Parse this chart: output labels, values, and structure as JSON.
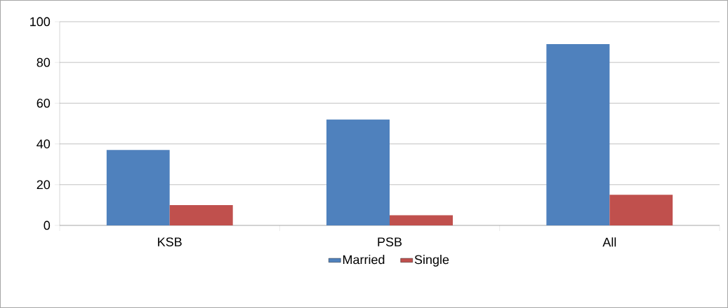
{
  "chart_data": {
    "type": "bar",
    "categories": [
      "KSB",
      "PSB",
      "All"
    ],
    "series": [
      {
        "name": "Married",
        "color": "#4f81bd",
        "values": [
          37,
          52,
          89
        ]
      },
      {
        "name": "Single",
        "color": "#c0504d",
        "values": [
          10,
          5,
          15
        ]
      }
    ],
    "ylim": [
      0,
      100
    ],
    "yticks": [
      0,
      20,
      40,
      60,
      80,
      100
    ],
    "grid": "y",
    "legend": "bottom"
  }
}
